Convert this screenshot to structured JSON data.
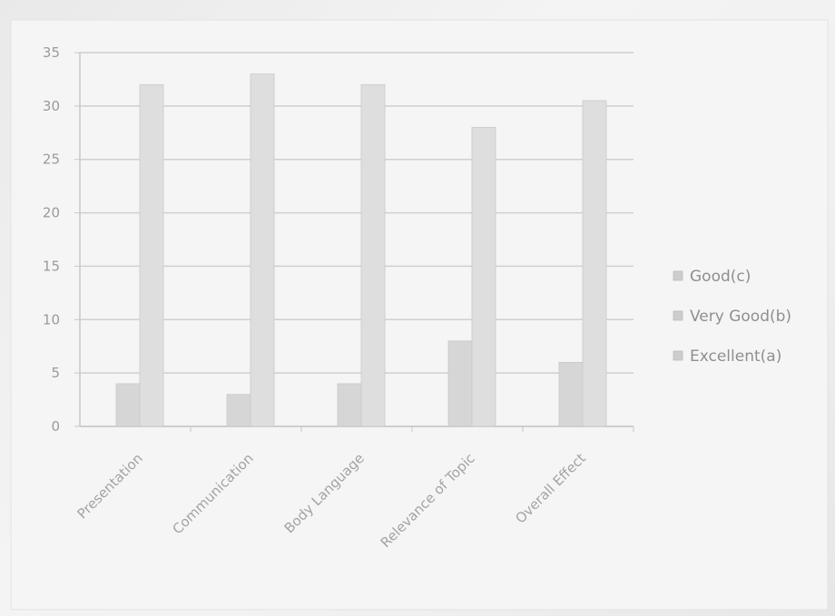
{
  "chart_data": {
    "type": "bar",
    "title": "",
    "xlabel": "",
    "ylabel": "",
    "categories": [
      "Presentation",
      "Communication",
      "Body Language",
      "Relevance of Topic",
      "Overall Effect"
    ],
    "series": [
      {
        "name": "Good(c)",
        "values": [
          0,
          0,
          0,
          0,
          0
        ],
        "color": "#d3d3d3"
      },
      {
        "name": "Very Good(b)",
        "values": [
          4,
          3,
          4,
          8,
          6
        ],
        "color": "#d6d6d6"
      },
      {
        "name": "Excellent(a)",
        "values": [
          32,
          33,
          32,
          28,
          30.5
        ],
        "color": "#dcdcdc"
      }
    ],
    "ylim": [
      0,
      35
    ],
    "yticks": [
      0,
      5,
      10,
      15,
      20,
      25,
      30,
      35
    ],
    "grid": true,
    "legend_position": "right"
  }
}
